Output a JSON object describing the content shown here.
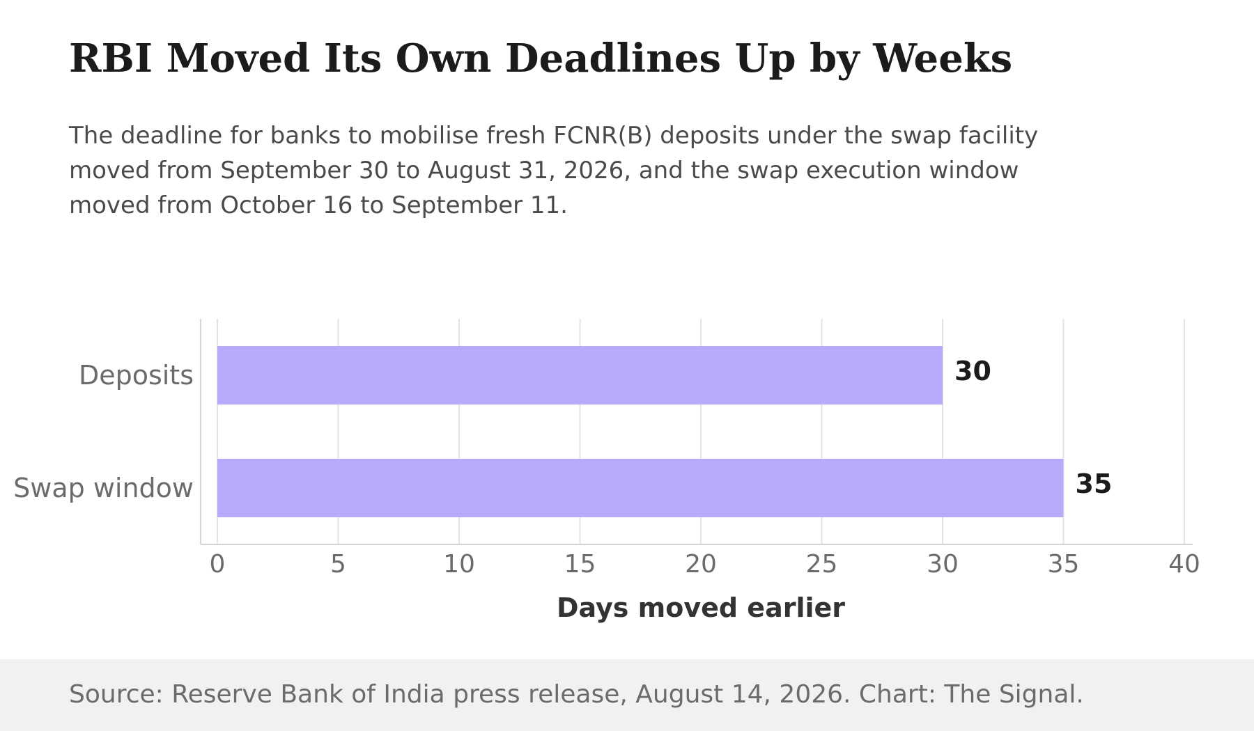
{
  "title": "RBI Moved Its Own Deadlines Up by Weeks",
  "subtitle": "The deadline for banks to mobilise fresh FCNR(B) deposits under the swap facility moved from September 30 to August 31, 2026, and the swap execution window moved from October 16 to September 11.",
  "source": "Source: Reserve Bank of India press release, August 14, 2026. Chart: The Signal.",
  "colors": {
    "bar": "#b8a9fd",
    "grid": "#e3e3e3",
    "axis": "#d4d4d4",
    "tick_text": "#6b6b6b",
    "label_text": "#1b1b1b",
    "xlabel_text": "#333333",
    "footer_bg": "#f2f1ef"
  },
  "chart_data": {
    "type": "bar",
    "orientation": "horizontal",
    "categories": [
      "Deposits",
      "Swap window"
    ],
    "values": [
      30,
      35
    ],
    "xlabel": "Days moved earlier",
    "ylabel": "",
    "xlim": [
      0,
      40
    ],
    "xticks": [
      0,
      5,
      10,
      15,
      20,
      25,
      30,
      35,
      40
    ],
    "grid": "vertical",
    "data_labels": true
  }
}
